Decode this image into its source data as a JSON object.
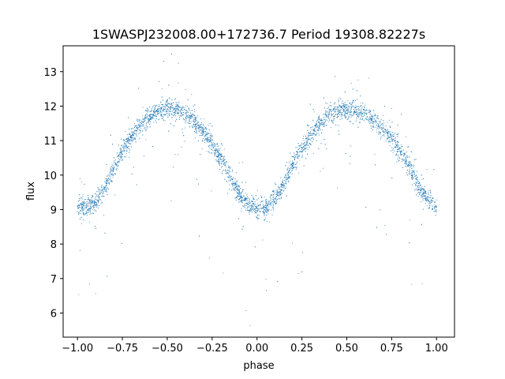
{
  "chart_data": {
    "type": "scatter",
    "title": "1SWASPJ232008.00+172736.7 Period 19308.82227s",
    "xlabel": "phase",
    "ylabel": "flux",
    "xlim": [
      -1.08,
      1.1
    ],
    "ylim": [
      5.3,
      13.75
    ],
    "x_ticks": [
      -1.0,
      -0.75,
      -0.5,
      -0.25,
      0.0,
      0.25,
      0.5,
      0.75,
      1.0
    ],
    "x_tick_labels": [
      "−1.00",
      "−0.75",
      "−0.50",
      "−0.25",
      "0.00",
      "0.25",
      "0.50",
      "0.75",
      "1.00"
    ],
    "y_ticks": [
      6,
      7,
      8,
      9,
      10,
      11,
      12,
      13
    ],
    "y_tick_labels": [
      "6",
      "7",
      "8",
      "9",
      "10",
      "11",
      "12",
      "13"
    ],
    "grid": false,
    "legend": "none",
    "marker_color": "#1f77b4",
    "series": [
      {
        "x": [
          -1.0,
          -0.95,
          -0.9,
          -0.85,
          -0.8,
          -0.75,
          -0.7,
          -0.65,
          -0.6,
          -0.55,
          -0.5,
          -0.45,
          -0.4,
          -0.35,
          -0.3,
          -0.25,
          -0.2,
          -0.15,
          -0.1,
          -0.05,
          0.0,
          0.05,
          0.1,
          0.15,
          0.2,
          0.25,
          0.3,
          0.35,
          0.4,
          0.45,
          0.5,
          0.55,
          0.6,
          0.65,
          0.7,
          0.75,
          0.8,
          0.85,
          0.9,
          0.95,
          1.0
        ],
        "y": [
          9.1,
          9.05,
          9.2,
          9.6,
          10.15,
          10.7,
          11.1,
          11.45,
          11.7,
          11.85,
          11.9,
          11.9,
          11.8,
          11.55,
          11.25,
          10.9,
          10.45,
          9.95,
          9.45,
          9.15,
          9.05,
          9.05,
          9.3,
          9.75,
          10.3,
          10.75,
          11.15,
          11.5,
          11.75,
          11.85,
          11.9,
          11.9,
          11.8,
          11.55,
          11.35,
          11.05,
          10.65,
          10.15,
          9.7,
          9.3,
          9.1
        ]
      }
    ]
  }
}
